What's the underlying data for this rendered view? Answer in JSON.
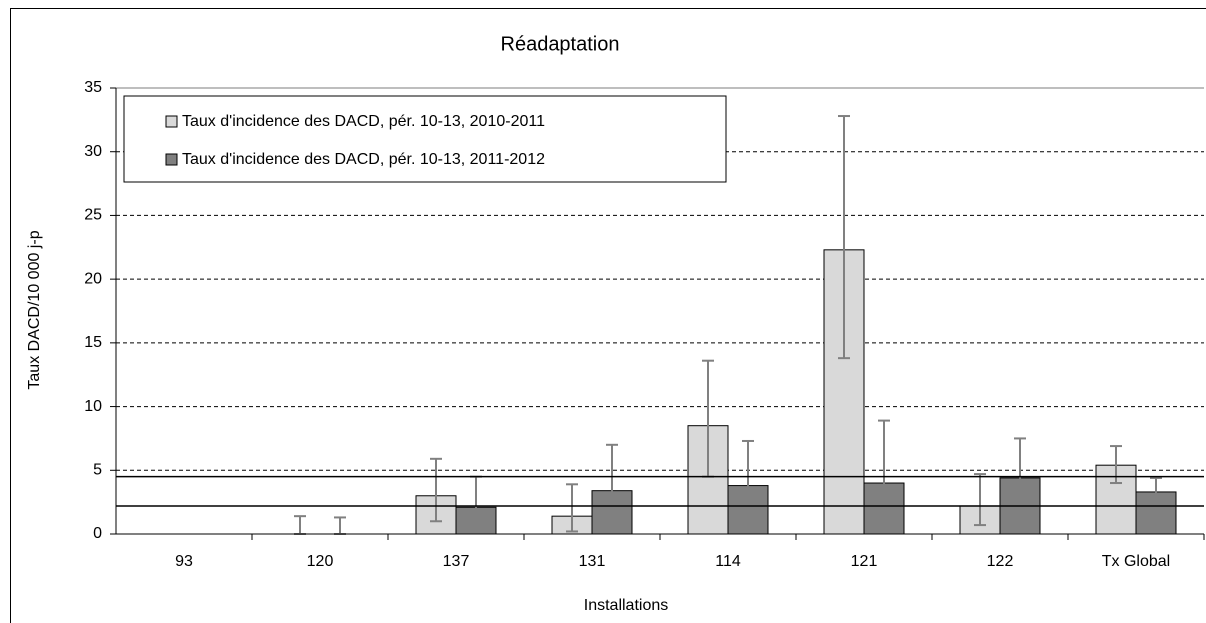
{
  "chart_data": {
    "type": "bar",
    "title": "Réadaptation",
    "x_label": "Installations",
    "y_label": "Taux DACD/10 000 j-p",
    "categories": [
      "93",
      "120",
      "137",
      "131",
      "114",
      "121",
      "122",
      "Tx Global"
    ],
    "series": [
      {
        "name": "Taux d'incidence des DACD, pér. 10-13, 2010-2011",
        "color": "#d9d9d9",
        "values": [
          0,
          0,
          3.0,
          1.4,
          8.5,
          22.3,
          2.2,
          5.4
        ],
        "lower": [
          null,
          0,
          1.0,
          0.2,
          4.5,
          13.8,
          0.7,
          4.0
        ],
        "upper": [
          null,
          1.4,
          5.9,
          3.9,
          13.6,
          32.8,
          4.7,
          6.9
        ]
      },
      {
        "name": "Taux d'incidence des DACD, pér. 10-13, 2011-2012",
        "color": "#808080",
        "values": [
          0,
          0,
          2.1,
          3.4,
          3.8,
          4.0,
          4.4,
          3.3
        ],
        "lower": [
          null,
          0,
          0.5,
          1.0,
          1.3,
          1.0,
          2.1,
          2.3
        ],
        "upper": [
          null,
          1.3,
          4.5,
          7.0,
          7.3,
          8.9,
          7.5,
          4.4
        ]
      }
    ],
    "reference_lines": [
      4.5,
      2.2
    ],
    "ylim": [
      0,
      35
    ],
    "yticks": [
      0,
      5,
      10,
      15,
      20,
      25,
      30,
      35
    ],
    "grid": true
  }
}
